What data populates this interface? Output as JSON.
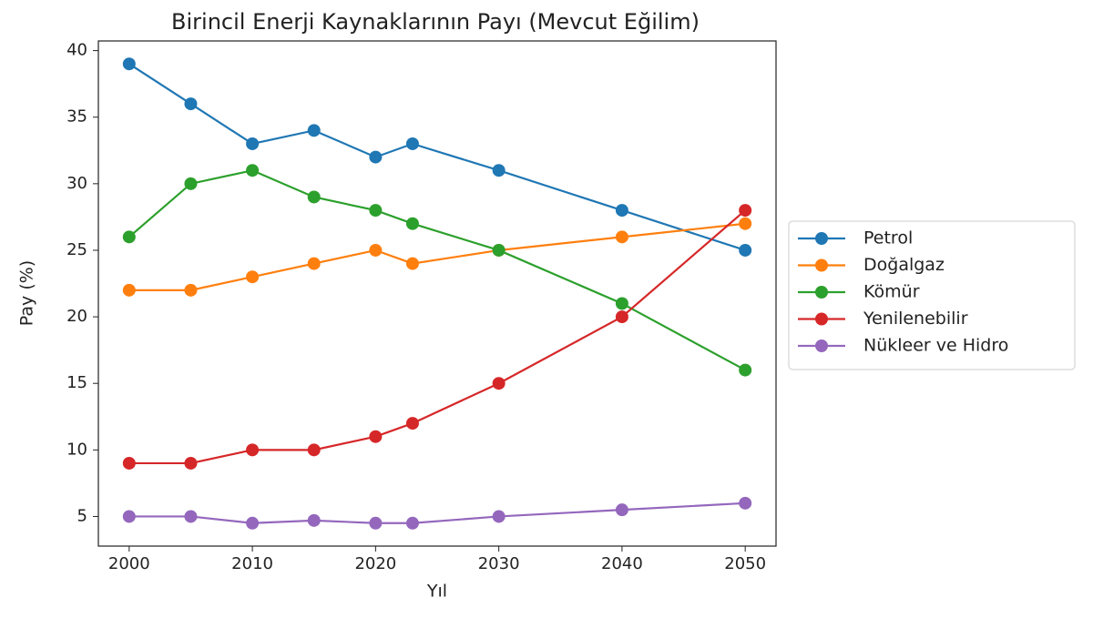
{
  "chart_data": {
    "type": "line",
    "title": "Birincil Enerji Kaynaklarının Payı (Mevcut Eğilim)",
    "x_label": "Yıl",
    "y_label": "Pay (%)",
    "x": [
      2000,
      2005,
      2010,
      2015,
      2020,
      2023,
      2030,
      2040,
      2050
    ],
    "series": [
      {
        "name": "Petrol",
        "color": "#1f77b4",
        "values": [
          39,
          36,
          33,
          34,
          32,
          33,
          31,
          28,
          25
        ]
      },
      {
        "name": "Doğalgaz",
        "color": "#ff7f0e",
        "values": [
          22,
          22,
          23,
          24,
          25,
          24,
          25,
          26,
          27
        ]
      },
      {
        "name": "Kömür",
        "color": "#2ca02c",
        "values": [
          26,
          30,
          31,
          29,
          28,
          27,
          25,
          21,
          16
        ]
      },
      {
        "name": "Yenilenebilir",
        "color": "#d62728",
        "values": [
          9,
          9,
          10,
          10,
          11,
          12,
          15,
          20,
          28
        ]
      },
      {
        "name": "Nükleer ve Hidro",
        "color": "#9467bd",
        "values": [
          5,
          5,
          4.5,
          4.7,
          4.5,
          4.5,
          5,
          5.5,
          6
        ]
      }
    ],
    "xlim": [
      1997.5,
      2052.5
    ],
    "xticks": [
      2000,
      2010,
      2020,
      2030,
      2040,
      2050
    ],
    "ylim": [
      2.775,
      40.725
    ],
    "yticks": [
      5,
      10,
      15,
      20,
      25,
      30,
      35,
      40
    ],
    "grid": false,
    "legend": "outside right"
  }
}
